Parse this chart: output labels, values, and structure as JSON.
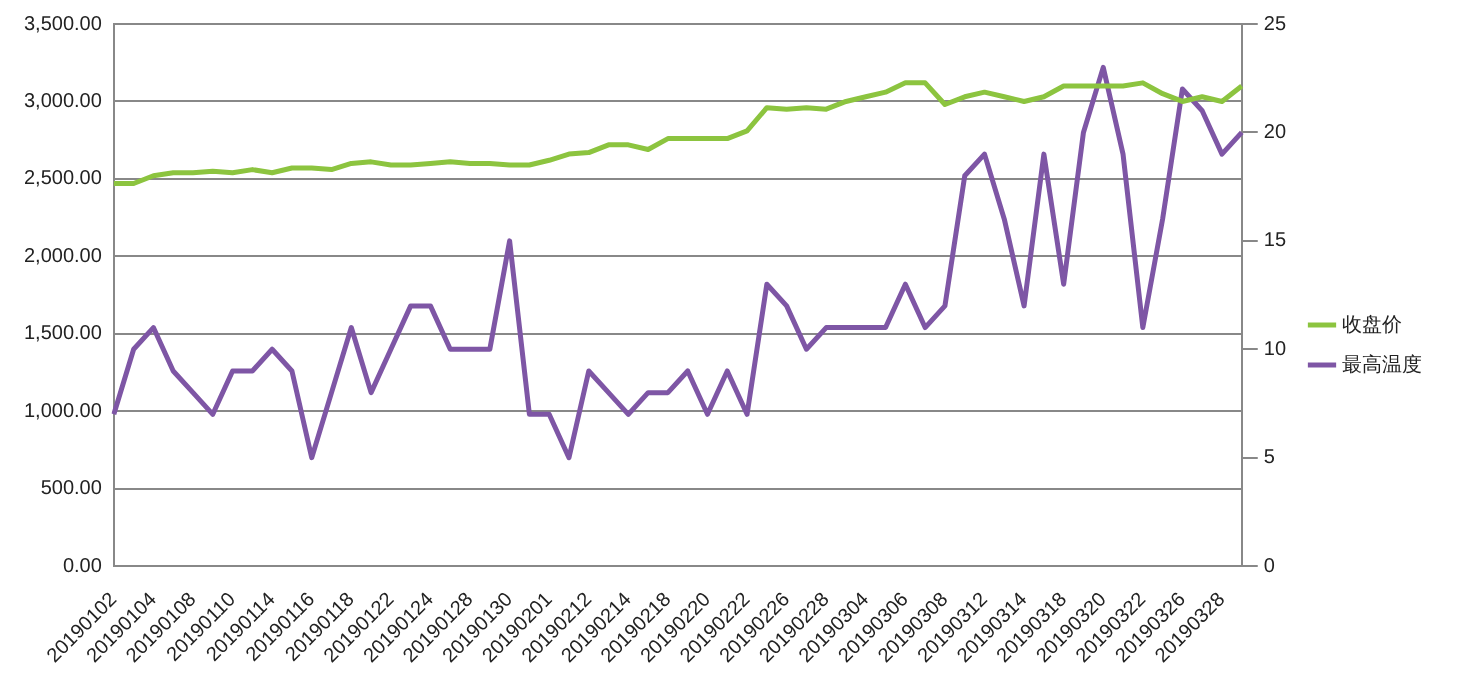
{
  "chart_data": {
    "type": "line",
    "categories": [
      "20190102",
      null,
      "20190104",
      null,
      "20190108",
      null,
      "20190110",
      null,
      "20190114",
      null,
      "20190116",
      null,
      "20190118",
      null,
      "20190122",
      null,
      "20190124",
      null,
      "20190128",
      null,
      "20190130",
      null,
      "20190201",
      null,
      "20190212",
      null,
      "20190214",
      null,
      "20190218",
      null,
      "20190220",
      null,
      "20190222",
      null,
      "20190226",
      null,
      "20190228",
      null,
      "20190304",
      null,
      "20190306",
      null,
      "20190308",
      null,
      "20190312",
      null,
      "20190314",
      null,
      "20190318",
      null,
      "20190320",
      null,
      "20190322",
      null,
      "20190326",
      null,
      "20190328",
      null
    ],
    "series": [
      {
        "name": "收盘价",
        "color": "#8cc43f",
        "values": [
          2470,
          2470,
          2520,
          2540,
          2540,
          2550,
          2540,
          2560,
          2540,
          2570,
          2570,
          2560,
          2600,
          2610,
          2590,
          2590,
          2600,
          2610,
          2600,
          2600,
          2590,
          2590,
          2620,
          2660,
          2670,
          2720,
          2720,
          2690,
          2760,
          2760,
          2760,
          2760,
          2810,
          2960,
          2950,
          2960,
          2950,
          3000,
          3030,
          3060,
          3120,
          3120,
          2980,
          3030,
          3060,
          3030,
          3000,
          3030,
          3100,
          3100,
          3100,
          3100,
          3120,
          3050,
          3000,
          3030,
          3000,
          3100
        ]
      },
      {
        "name": "最高温度",
        "color": "#7e56a5",
        "axis": "y2",
        "values": [
          7,
          10,
          11,
          9,
          8,
          7,
          9,
          9,
          10,
          9,
          5,
          8,
          11,
          8,
          10,
          12,
          12,
          10,
          10,
          10,
          15,
          7,
          7,
          5,
          9,
          8,
          7,
          8,
          8,
          9,
          7,
          9,
          7,
          13,
          12,
          10,
          11,
          11,
          11,
          11,
          13,
          11,
          12,
          18,
          19,
          16,
          12,
          19,
          13,
          20,
          23,
          19,
          11,
          16,
          22,
          21,
          19,
          20
        ]
      }
    ],
    "ylim": [
      0,
      3500
    ],
    "yticks": [
      {
        "value": 0,
        "label": "0.00"
      },
      {
        "value": 500,
        "label": "500.00"
      },
      {
        "value": 1000,
        "label": "1,000.00"
      },
      {
        "value": 1500,
        "label": "1,500.00"
      },
      {
        "value": 2000,
        "label": "2,000.00"
      },
      {
        "value": 2500,
        "label": "2,500.00"
      },
      {
        "value": 3000,
        "label": "3,000.00"
      },
      {
        "value": 3500,
        "label": "3,500.00"
      }
    ],
    "y2lim": [
      0,
      25
    ],
    "y2ticks": [
      0,
      5,
      10,
      15,
      20,
      25
    ],
    "grid": "y",
    "legend": "right",
    "marker": "none",
    "line_style": "solid"
  }
}
